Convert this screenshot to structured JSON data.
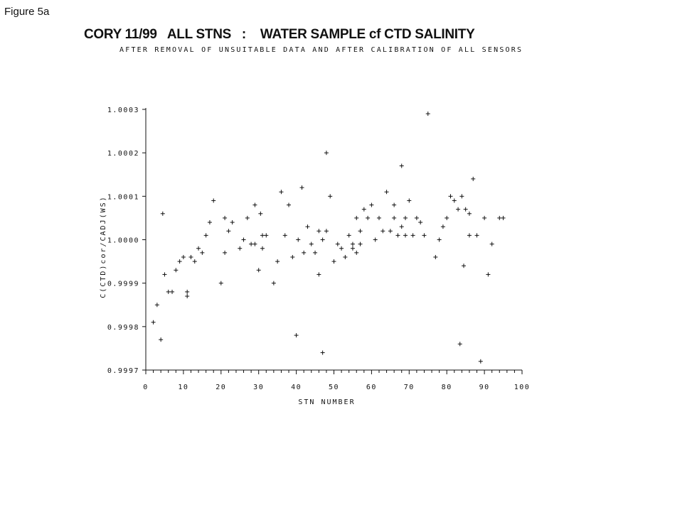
{
  "figure_label": "Figure 5a",
  "chart_data": {
    "type": "scatter",
    "title": "CORY 11/99   ALL STNS   :    WATER SAMPLE cf CTD SALINITY",
    "subtitle": "AFTER REMOVAL OF UNSUITABLE DATA AND AFTER CALIBRATION OF ALL SENSORS",
    "xlabel": "STN NUMBER",
    "ylabel": "C(CTD)cor/CADJ(WS)",
    "xlim": [
      0,
      100
    ],
    "ylim": [
      0.9997,
      1.0003
    ],
    "x_ticks": [
      "0",
      "10",
      "20",
      "30",
      "40",
      "50",
      "60",
      "70",
      "80",
      "90",
      "100"
    ],
    "y_ticks": [
      "0.9997",
      "0.9998",
      "0.9999",
      "1.0000",
      "1.0001",
      "1.0002",
      "1.0003"
    ],
    "marker": "+",
    "grid": false,
    "points": [
      [
        2,
        0.99981
      ],
      [
        3,
        0.99985
      ],
      [
        4,
        0.99977
      ],
      [
        4.5,
        1.00006
      ],
      [
        5,
        0.99992
      ],
      [
        6,
        0.99988
      ],
      [
        7,
        0.99988
      ],
      [
        8,
        0.99993
      ],
      [
        9,
        0.99995
      ],
      [
        10,
        0.99996
      ],
      [
        11,
        0.99988
      ],
      [
        11,
        0.99987
      ],
      [
        12,
        0.99996
      ],
      [
        13,
        0.99995
      ],
      [
        14,
        0.99998
      ],
      [
        15,
        0.99997
      ],
      [
        16,
        1.00001
      ],
      [
        17,
        1.00004
      ],
      [
        18,
        1.00009
      ],
      [
        20,
        0.9999
      ],
      [
        21,
        0.99997
      ],
      [
        21,
        1.00005
      ],
      [
        22,
        1.00002
      ],
      [
        23,
        1.00004
      ],
      [
        25,
        0.99998
      ],
      [
        26,
        1.0
      ],
      [
        27,
        1.00005
      ],
      [
        28,
        0.99999
      ],
      [
        29,
        0.99999
      ],
      [
        29,
        1.00008
      ],
      [
        30,
        0.99993
      ],
      [
        30.5,
        1.00006
      ],
      [
        31,
        0.99998
      ],
      [
        31,
        1.00001
      ],
      [
        32,
        1.00001
      ],
      [
        34,
        0.9999
      ],
      [
        35,
        0.99995
      ],
      [
        36,
        1.00011
      ],
      [
        37,
        1.00001
      ],
      [
        38,
        1.00008
      ],
      [
        39,
        0.99996
      ],
      [
        40,
        0.99978
      ],
      [
        40.5,
        1.0
      ],
      [
        41.5,
        1.00012
      ],
      [
        42,
        0.99997
      ],
      [
        43,
        1.00003
      ],
      [
        44,
        0.99999
      ],
      [
        45,
        0.99997
      ],
      [
        46,
        0.99992
      ],
      [
        46,
        1.00002
      ],
      [
        47,
        0.99974
      ],
      [
        47,
        1.0
      ],
      [
        48,
        1.00002
      ],
      [
        48,
        1.0002
      ],
      [
        49,
        1.0001
      ],
      [
        50,
        0.99995
      ],
      [
        51,
        0.99999
      ],
      [
        52,
        0.99998
      ],
      [
        53,
        0.99996
      ],
      [
        54,
        1.00001
      ],
      [
        55,
        0.99999
      ],
      [
        55,
        0.99998
      ],
      [
        56,
        1.00005
      ],
      [
        56,
        0.99997
      ],
      [
        57,
        1.00002
      ],
      [
        57,
        0.99999
      ],
      [
        58,
        1.00007
      ],
      [
        59,
        1.00005
      ],
      [
        60,
        1.00008
      ],
      [
        61,
        1.0
      ],
      [
        62,
        1.00005
      ],
      [
        63,
        1.00002
      ],
      [
        64,
        1.00011
      ],
      [
        65,
        1.00002
      ],
      [
        66,
        1.00008
      ],
      [
        66,
        1.00005
      ],
      [
        67,
        1.00001
      ],
      [
        68,
        1.00017
      ],
      [
        68,
        1.00003
      ],
      [
        69,
        1.00005
      ],
      [
        69,
        1.00001
      ],
      [
        70,
        1.00009
      ],
      [
        71,
        1.00001
      ],
      [
        72,
        1.00005
      ],
      [
        73,
        1.00004
      ],
      [
        74,
        1.00001
      ],
      [
        75,
        1.00029
      ],
      [
        77,
        0.99996
      ],
      [
        78,
        1.0
      ],
      [
        79,
        1.00003
      ],
      [
        80,
        1.00005
      ],
      [
        81,
        1.0001
      ],
      [
        82,
        1.00009
      ],
      [
        83,
        1.00007
      ],
      [
        83.5,
        0.99976
      ],
      [
        84,
        1.0001
      ],
      [
        84.5,
        0.99994
      ],
      [
        85,
        1.00007
      ],
      [
        86,
        1.00006
      ],
      [
        86,
        1.00001
      ],
      [
        87,
        1.00014
      ],
      [
        88,
        1.00001
      ],
      [
        89,
        0.99972
      ],
      [
        90,
        1.00005
      ],
      [
        91,
        0.99992
      ],
      [
        92,
        0.99999
      ],
      [
        94,
        1.00005
      ],
      [
        95,
        1.00005
      ]
    ]
  }
}
